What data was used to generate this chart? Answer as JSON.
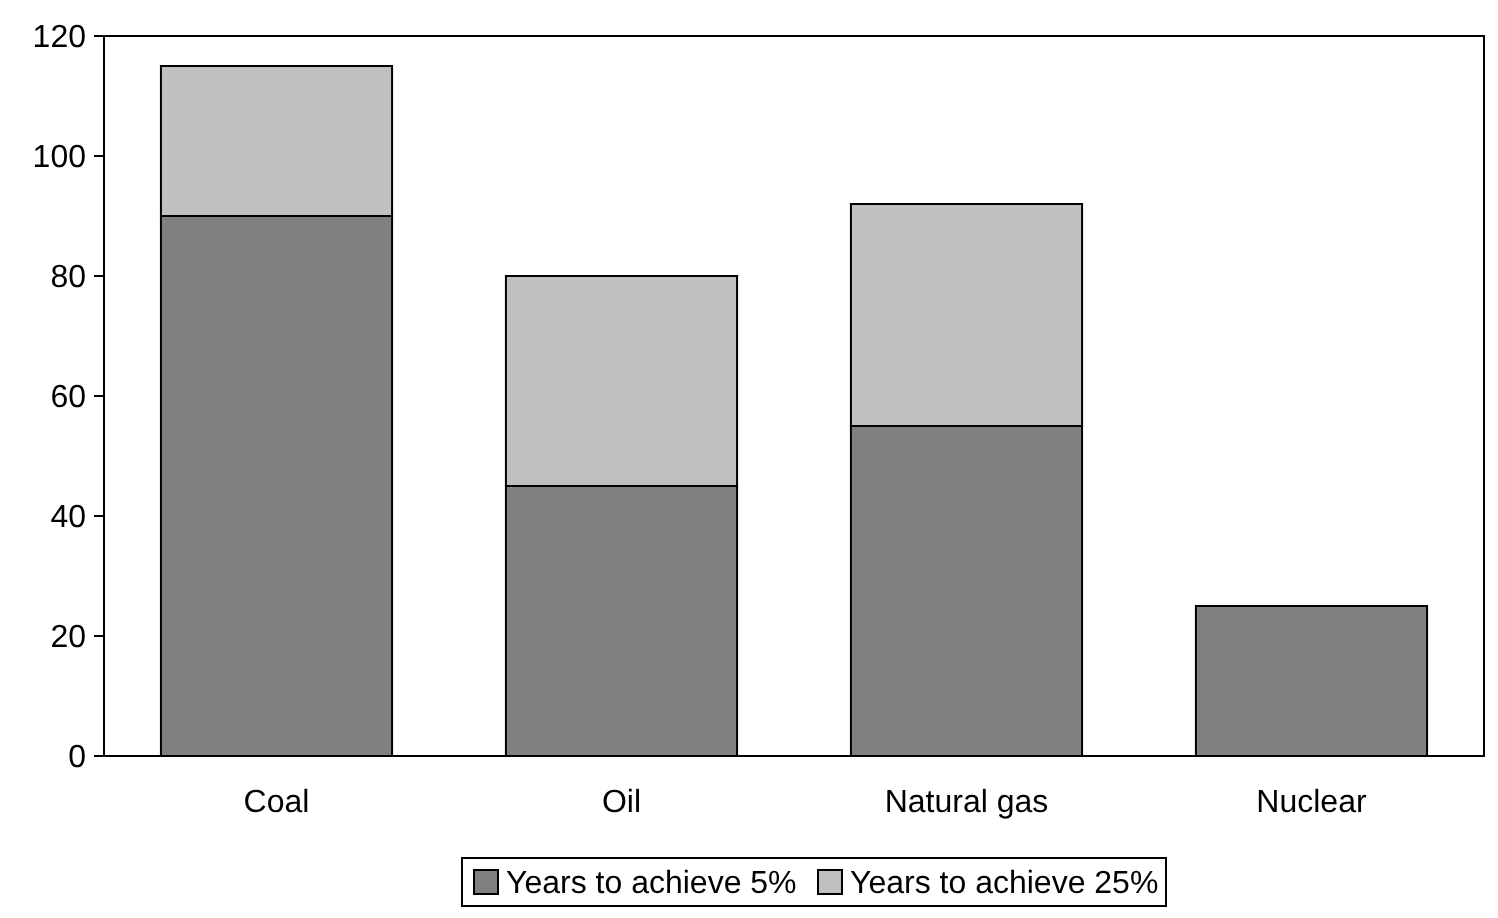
{
  "chart_data": {
    "type": "bar",
    "stacked": true,
    "categories": [
      "Coal",
      "Oil",
      "Natural gas",
      "Nuclear"
    ],
    "series": [
      {
        "name": "Years to achieve 5%",
        "color": "#808080",
        "values": [
          90,
          45,
          55,
          25
        ]
      },
      {
        "name": "Years to achieve 25%",
        "color": "#c0c0c0",
        "values": [
          25,
          35,
          37,
          null
        ]
      }
    ],
    "ylim": [
      0,
      120
    ],
    "yticks": [
      0,
      20,
      40,
      60,
      80,
      100,
      120
    ],
    "grid": false,
    "legend": "bottom"
  }
}
